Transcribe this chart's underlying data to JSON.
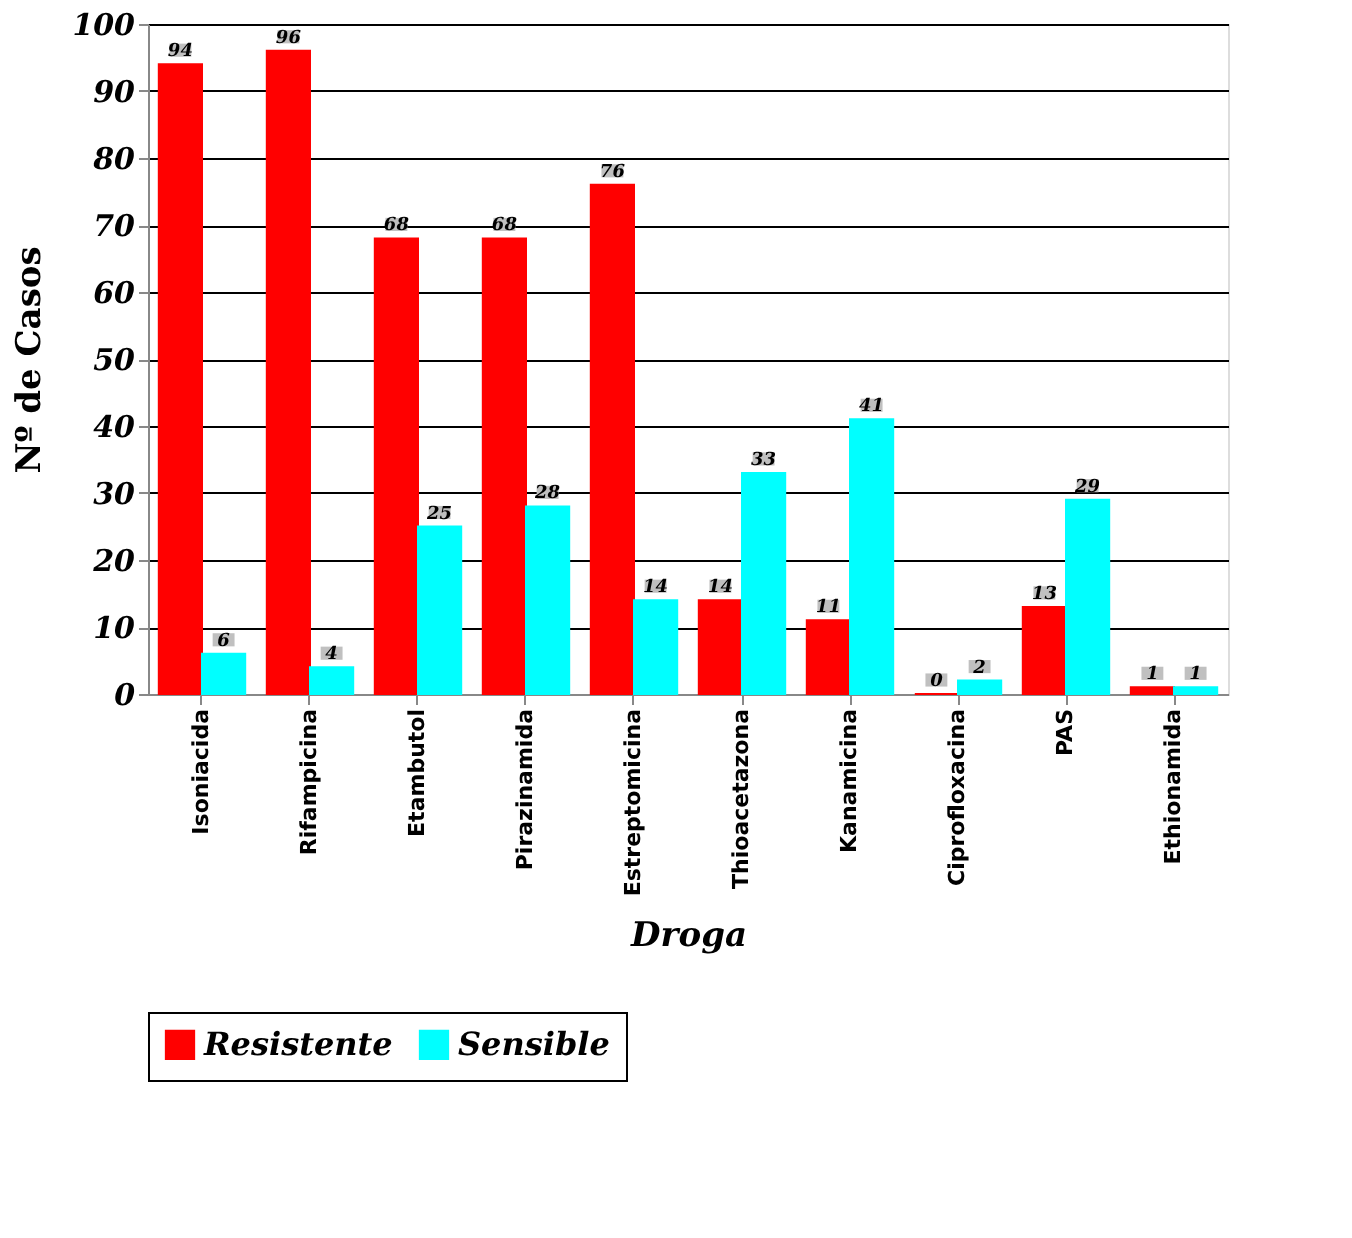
{
  "chart_data": {
    "type": "bar",
    "xlabel": "Droga",
    "ylabel": "Nº de Casos",
    "categories": [
      "Isoniacida",
      "Rifampicina",
      "Etambutol",
      "Pirazinamida",
      "Estreptomicina",
      "Thioacetazona",
      "Kanamicina",
      "Ciprofloxacina",
      "PAS",
      "Ethionamida"
    ],
    "series": [
      {
        "name": "Resistente",
        "color": "#ff0000",
        "values": [
          94,
          96,
          68,
          68,
          76,
          14,
          11,
          0,
          13,
          1
        ]
      },
      {
        "name": "Sensible",
        "color": "#00ffff",
        "values": [
          6,
          4,
          25,
          28,
          14,
          33,
          41,
          2,
          29,
          1
        ]
      }
    ],
    "ylim": [
      0,
      100
    ],
    "yticks": [
      0,
      10,
      20,
      30,
      40,
      50,
      60,
      70,
      80,
      90,
      100
    ],
    "grid": "y",
    "legend": "bottom",
    "data_labels": true
  }
}
